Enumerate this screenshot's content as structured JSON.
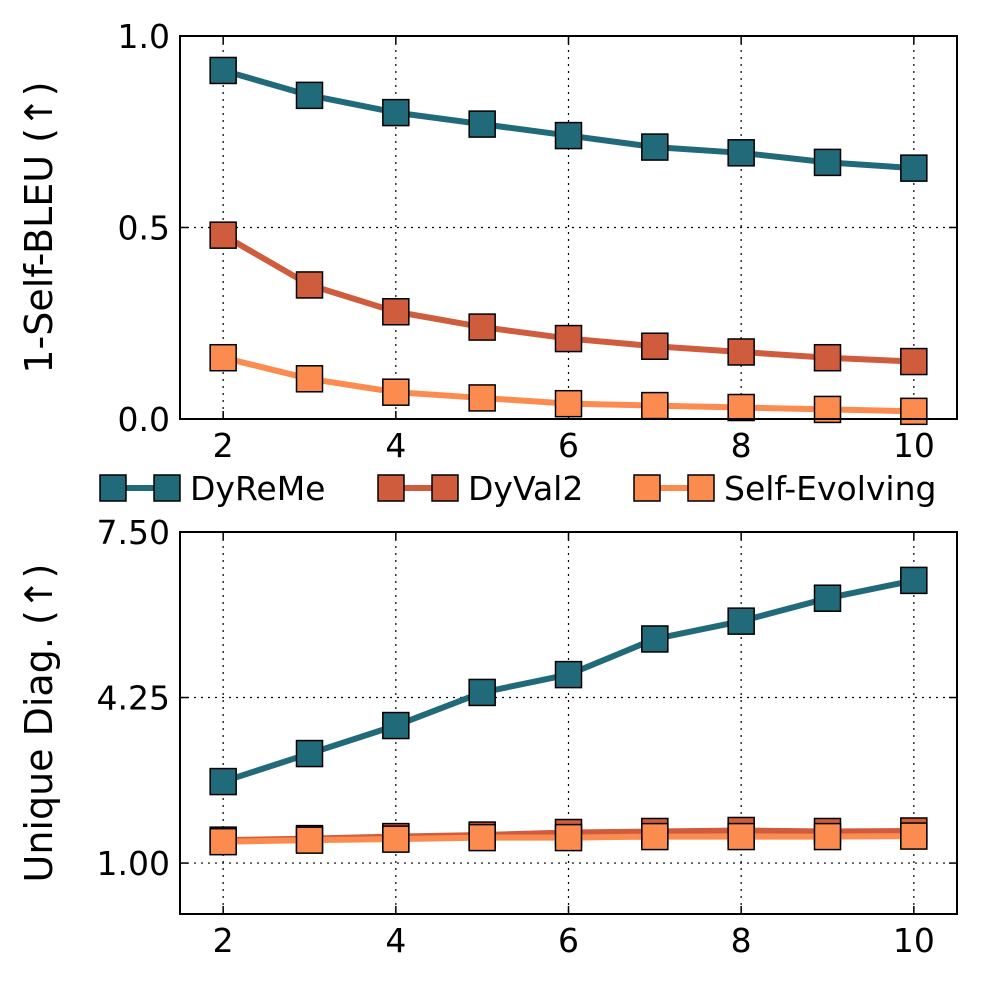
{
  "colors": {
    "DyReMe": "#216a7a",
    "DyVal2": "#cf5c3c",
    "Self-Evolving": "#fb8b4f"
  },
  "legend": {
    "placement": "between-panels",
    "entries": [
      "DyReMe",
      "DyVal2",
      "Self-Evolving"
    ]
  },
  "chart_data": [
    {
      "type": "line",
      "title": "",
      "xlabel": "",
      "ylabel": "1-Self-BLEU (↑)",
      "x": [
        2,
        3,
        4,
        5,
        6,
        7,
        8,
        9,
        10
      ],
      "xlim": [
        1.5,
        10.5
      ],
      "ylim": [
        0.0,
        1.0
      ],
      "xticks": [
        "2",
        "4",
        "6",
        "8",
        "10"
      ],
      "yticks": [
        "0.0",
        "0.5",
        "1.0"
      ],
      "grid": true,
      "series": [
        {
          "name": "DyReMe",
          "values": [
            0.91,
            0.845,
            0.8,
            0.77,
            0.74,
            0.71,
            0.695,
            0.67,
            0.655
          ]
        },
        {
          "name": "DyVal2",
          "values": [
            0.48,
            0.35,
            0.28,
            0.24,
            0.21,
            0.19,
            0.175,
            0.16,
            0.15
          ]
        },
        {
          "name": "Self-Evolving",
          "values": [
            0.16,
            0.105,
            0.07,
            0.055,
            0.04,
            0.035,
            0.03,
            0.025,
            0.02
          ]
        }
      ]
    },
    {
      "type": "line",
      "title": "",
      "xlabel": "",
      "ylabel": "Unique Diag. (↑)",
      "x": [
        2,
        3,
        4,
        5,
        6,
        7,
        8,
        9,
        10
      ],
      "xlim": [
        1.5,
        10.5
      ],
      "ylim": [
        0.0,
        7.5
      ],
      "xticks": [
        "2",
        "4",
        "6",
        "8",
        "10"
      ],
      "yticks": [
        "1.00",
        "4.25",
        "7.50"
      ],
      "grid": true,
      "series": [
        {
          "name": "DyReMe",
          "values": [
            2.6,
            3.15,
            3.7,
            4.35,
            4.7,
            5.4,
            5.75,
            6.2,
            6.55
          ]
        },
        {
          "name": "DyVal2",
          "values": [
            1.45,
            1.48,
            1.52,
            1.55,
            1.6,
            1.62,
            1.64,
            1.62,
            1.63
          ]
        },
        {
          "name": "Self-Evolving",
          "values": [
            1.42,
            1.45,
            1.47,
            1.5,
            1.5,
            1.52,
            1.52,
            1.52,
            1.53
          ]
        }
      ]
    }
  ]
}
